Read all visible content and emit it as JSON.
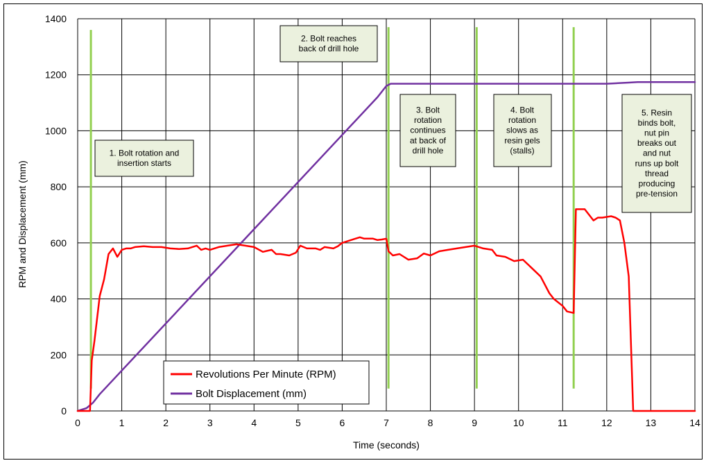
{
  "chart_data": {
    "type": "line",
    "xlabel": "Time (seconds)",
    "ylabel": "RPM and Displacement (mm)",
    "xlim": [
      0,
      14
    ],
    "ylim": [
      0,
      1400
    ],
    "xticks": [
      "0",
      "1",
      "2",
      "3",
      "4",
      "5",
      "6",
      "7",
      "8",
      "9",
      "10",
      "11",
      "12",
      "13",
      "14"
    ],
    "yticks": [
      "0",
      "200",
      "400",
      "600",
      "800",
      "1000",
      "1200",
      "1400"
    ],
    "grid": true,
    "legend_position": "bottom-left",
    "series": [
      {
        "name": "Revolutions Per Minute (RPM)",
        "color": "#ff0000",
        "x": [
          0,
          0.28,
          0.32,
          0.38,
          0.5,
          0.6,
          0.7,
          0.8,
          0.9,
          1.0,
          1.1,
          1.2,
          1.3,
          1.5,
          1.7,
          1.9,
          2.1,
          2.3,
          2.5,
          2.7,
          2.8,
          2.9,
          3.0,
          3.2,
          3.4,
          3.6,
          3.8,
          4.0,
          4.2,
          4.4,
          4.5,
          4.6,
          4.8,
          4.95,
          5.05,
          5.2,
          5.4,
          5.5,
          5.6,
          5.8,
          5.9,
          6.0,
          6.2,
          6.4,
          6.5,
          6.7,
          6.8,
          6.9,
          7.0,
          7.05,
          7.15,
          7.3,
          7.5,
          7.7,
          7.85,
          8.0,
          8.2,
          8.4,
          8.6,
          8.8,
          9.0,
          9.2,
          9.4,
          9.5,
          9.7,
          9.9,
          10.1,
          10.3,
          10.5,
          10.7,
          10.8,
          11.0,
          11.1,
          11.25,
          11.3,
          11.4,
          11.5,
          11.7,
          11.8,
          11.9,
          12.1,
          12.2,
          12.3,
          12.4,
          12.5,
          12.6,
          14.0
        ],
        "values": [
          0,
          0,
          180,
          250,
          410,
          470,
          560,
          580,
          550,
          575,
          580,
          580,
          585,
          588,
          585,
          585,
          580,
          578,
          580,
          590,
          575,
          580,
          575,
          585,
          590,
          595,
          590,
          585,
          568,
          575,
          560,
          560,
          555,
          565,
          590,
          580,
          580,
          575,
          585,
          580,
          588,
          600,
          610,
          620,
          615,
          615,
          610,
          612,
          615,
          570,
          555,
          560,
          540,
          545,
          562,
          555,
          570,
          575,
          580,
          585,
          590,
          580,
          575,
          555,
          550,
          535,
          540,
          510,
          480,
          420,
          400,
          375,
          355,
          350,
          720,
          720,
          720,
          680,
          690,
          690,
          695,
          690,
          680,
          600,
          480,
          0,
          0
        ]
      },
      {
        "name": "Bolt Displacement (mm)",
        "color": "#7030a0",
        "x": [
          0,
          0.2,
          0.35,
          0.5,
          6.8,
          7.0,
          7.1,
          7.3,
          12.0,
          12.5,
          12.7,
          14.0
        ],
        "values": [
          0,
          10,
          30,
          60,
          1120,
          1160,
          1168,
          1168,
          1168,
          1172,
          1174,
          1174
        ]
      }
    ],
    "stage_markers": [
      {
        "x": 0.3,
        "y_top": 1360,
        "y_bottom": 80
      },
      {
        "x": 7.05,
        "y_top": 1370,
        "y_bottom": 80
      },
      {
        "x": 9.05,
        "y_top": 1370,
        "y_bottom": 80
      },
      {
        "x": 11.25,
        "y_top": 1370,
        "y_bottom": 80
      }
    ],
    "marker_color": "#92d050",
    "annotations": [
      {
        "lines": [
          "1. Bolt rotation and",
          "insertion starts"
        ]
      },
      {
        "lines": [
          "2. Bolt reaches",
          "back of drill hole"
        ]
      },
      {
        "lines": [
          "3. Bolt",
          "rotation",
          "continues",
          "at back of",
          "drill hole"
        ]
      },
      {
        "lines": [
          "4. Bolt",
          "rotation",
          "slows as",
          "resin gels",
          "(stalls)"
        ]
      },
      {
        "lines": [
          "5. Resin",
          "binds bolt,",
          "nut pin",
          "breaks out",
          "and nut",
          "runs up bolt",
          "thread",
          "producing",
          "pre-tension"
        ]
      }
    ]
  }
}
